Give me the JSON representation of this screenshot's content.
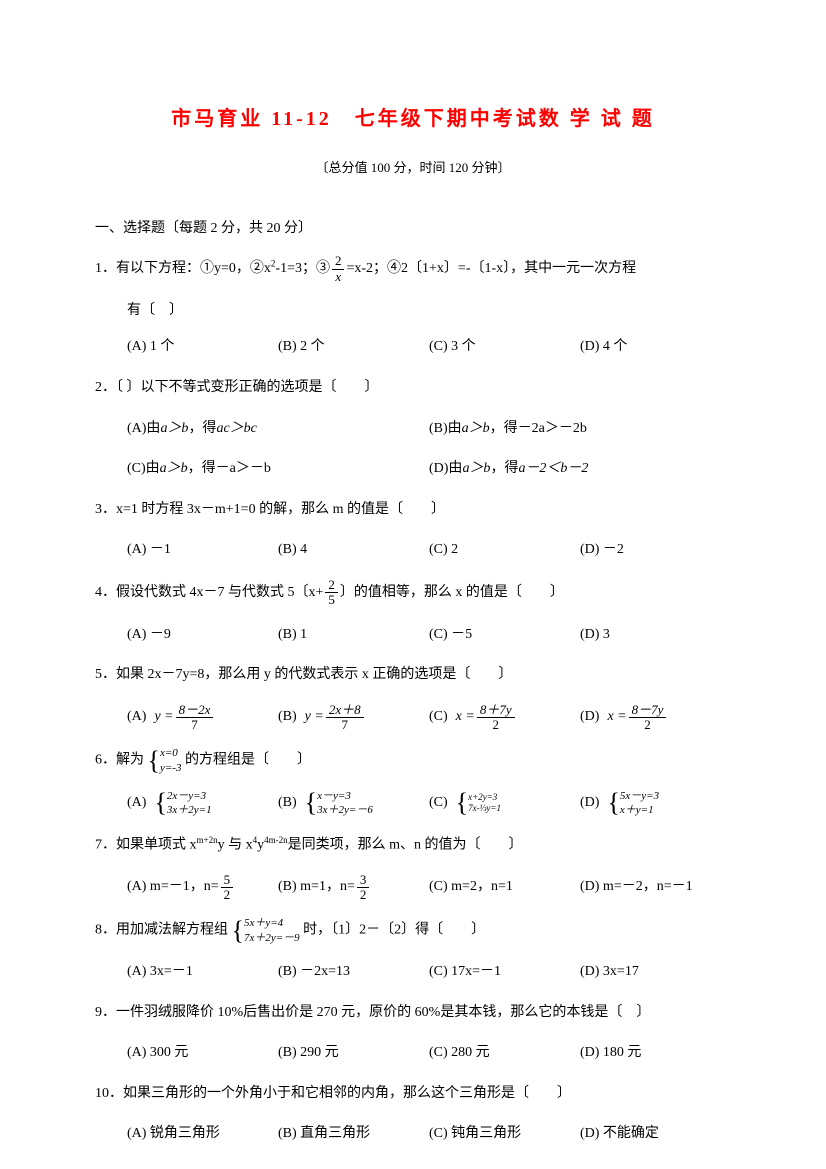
{
  "title": "市马育业 11-12　七年级下期中考试数 学 试 题",
  "subtitle": "〔总分值 100 分，时间 120 分钟〕",
  "section_header": "一、选择题〔每题 2 分，共 20 分〕",
  "q1": {
    "stem_a": "1．有以下方程：①y=0，②x",
    "stem_b": "-1=3；③",
    "stem_c": "=x-2；④2〔1+x〕=-〔1-x〕，其中一元一次方程",
    "cont": "有〔　〕",
    "optA": "(A) 1 个",
    "optB": "(B) 2 个",
    "optC": "(C) 3 个",
    "optD": "(D) 4 个",
    "frac_num": "2",
    "frac_den": "x"
  },
  "q2": {
    "stem": "2．〔 〕以下不等式变形正确的选项是〔　　〕",
    "optA_a": "(A)由",
    "optA_b": "a＞b",
    "optA_c": "，得",
    "optA_d": "ac＞bc",
    "optB_a": "(B)由",
    "optB_b": "a＞b",
    "optB_c": "，得－2a＞－2b",
    "optC_a": "(C)由",
    "optC_b": "a＞b",
    "optC_c": "，得－a＞－b",
    "optD_a": "(D)由",
    "optD_b": "a＞b",
    "optD_c": "，得",
    "optD_d": "a－2＜b－2"
  },
  "q3": {
    "stem": "3．x=1 时方程 3x－m+1=0 的解，那么 m 的值是〔　　〕",
    "optA": "(A) －1",
    "optB": "(B) 4",
    "optC": "(C) 2",
    "optD": "(D) －2"
  },
  "q4": {
    "stem_a": "4．假设代数式 4x－7 与代数式 5〔x+",
    "stem_b": "〕的值相等，那么 x 的值是〔　　〕",
    "optA": "(A) －9",
    "optB": "(B) 1",
    "optC": "(C) －5",
    "optD": "(D) 3",
    "frac_num": "2",
    "frac_den": "5"
  },
  "q5": {
    "stem": "5．如果 2x－7y=8，那么用 y 的代数式表示 x 正确的选项是〔　　〕",
    "optA_l": "(A)",
    "optA_v": "y =",
    "optA_num": "8－2x",
    "optA_den": "7",
    "optB_l": "(B)",
    "optB_v": "y =",
    "optB_num": "2x＋8",
    "optB_den": "7",
    "optC_l": "(C)",
    "optC_v": "x =",
    "optC_num": "8＋7y",
    "optC_den": "2",
    "optD_l": "(D)",
    "optD_v": "x =",
    "optD_num": "8－7y",
    "optD_den": "2"
  },
  "q6": {
    "stem_a": "6．解为",
    "stem_b": "的方程组是〔　　〕",
    "sys0_1": "x=0",
    "sys0_2": "y=-3",
    "optA": "(A)",
    "sysA_1": "2x－y=3",
    "sysA_2": "3x＋2y=1",
    "optB": "(B)",
    "sysB_1": "x－y=3",
    "sysB_2": "3x＋2y=－6",
    "optC": "(C)",
    "sysC_1": "x+2y=3",
    "sysC_2": "7x-⅓y=1",
    "optD": "(D)",
    "sysD_1": "5x－y=3",
    "sysD_2": "x＋y=1"
  },
  "q7": {
    "stem_a": "7．如果单项式 x",
    "stem_sup1": "m+2n",
    "stem_b": "y 与 x",
    "stem_sup2": "4",
    "stem_c": "y",
    "stem_sup3": "4m-2n",
    "stem_d": "是同类项，那么 m、n 的值为〔　　〕",
    "optA_a": "(A) m=－1，n=",
    "optB_a": "(B) m=1，n=",
    "optC": "(C) m=2，n=1",
    "optD": "(D) m=－2，n=－1",
    "frac_num": "5",
    "frac_den": "2",
    "fracB_num": "3",
    "fracB_den": "2"
  },
  "q8": {
    "stem_a": "8．用加减法解方程组",
    "stem_b": "时，〔1〕2－〔2〕得〔　　〕",
    "sys_1": "5x＋y=4",
    "sys_2": "7x＋2y=－9",
    "optA": "(A) 3x=－1",
    "optB": "(B) －2x=13",
    "optC": "(C) 17x=－1",
    "optD": "(D) 3x=17"
  },
  "q9": {
    "stem": "9．一件羽绒服降价 10%后售出价是 270 元，原价的 60%是其本钱，那么它的本钱是〔　〕",
    "optA": "(A) 300 元",
    "optB": "(B) 290 元",
    "optC": "(C) 280 元",
    "optD": "(D) 180 元"
  },
  "q10": {
    "stem": "10．如果三角形的一个外角小于和它相邻的内角，那么这个三角形是〔　　〕",
    "optA": "(A) 锐角三角形",
    "optB": "(B) 直角三角形",
    "optC": "(C) 钝角三角形",
    "optD": "(D) 不能确定"
  }
}
